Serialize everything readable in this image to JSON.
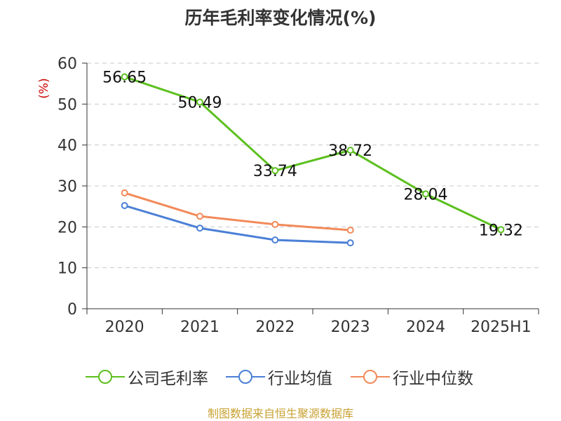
{
  "chart_data": {
    "type": "line",
    "title": "历年毛利率变化情况(%)",
    "ylabel": "(%)",
    "categories": [
      "2020",
      "2021",
      "2022",
      "2023",
      "2024",
      "2025H1"
    ],
    "ylim": [
      0,
      60
    ],
    "yticks": [
      "0",
      "10",
      "20",
      "30",
      "40",
      "50",
      "60"
    ],
    "grid": true,
    "legend_position": "bottom",
    "series": [
      {
        "name": "公司毛利率",
        "color": "#5cc01e",
        "values": [
          56.65,
          50.49,
          33.74,
          38.72,
          28.04,
          19.32
        ],
        "labels": [
          "56.65",
          "50.49",
          "33.74",
          "38.72",
          "28.04",
          "19.32"
        ]
      },
      {
        "name": "行业均值",
        "color": "#4a7fd6",
        "values": [
          25.2,
          19.7,
          16.8,
          16.1,
          null,
          null
        ]
      },
      {
        "name": "行业中位数",
        "color": "#f28a5a",
        "values": [
          28.3,
          22.6,
          20.6,
          19.2,
          null,
          null
        ]
      }
    ]
  },
  "source": "制图数据来自恒生聚源数据库"
}
